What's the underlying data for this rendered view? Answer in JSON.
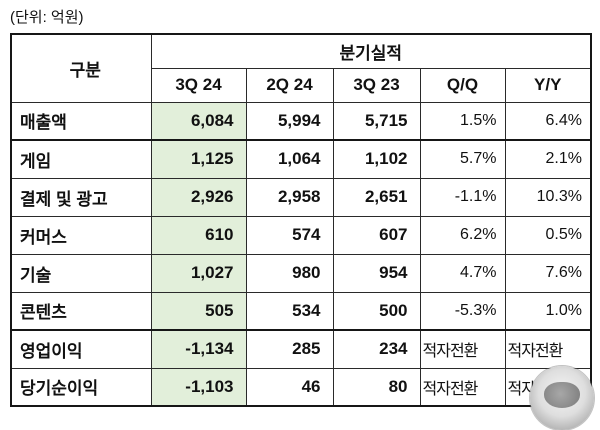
{
  "unit_label": "(단위: 억원)",
  "chart_data": {
    "type": "table",
    "unit": "(단위: 억원)",
    "group_header": "분기실적",
    "corner_header": "구분",
    "columns": [
      "3Q 24",
      "2Q 24",
      "3Q 23",
      "Q/Q",
      "Y/Y"
    ],
    "rows": [
      {
        "label": "매출액",
        "values": [
          "6,084",
          "5,994",
          "5,715",
          "1.5%",
          "6.4%"
        ]
      },
      {
        "label": "게임",
        "values": [
          "1,125",
          "1,064",
          "1,102",
          "5.7%",
          "2.1%"
        ]
      },
      {
        "label": "결제 및 광고",
        "values": [
          "2,926",
          "2,958",
          "2,651",
          "-1.1%",
          "10.3%"
        ]
      },
      {
        "label": "커머스",
        "values": [
          "610",
          "574",
          "607",
          "6.2%",
          "0.5%"
        ]
      },
      {
        "label": "기술",
        "values": [
          "1,027",
          "980",
          "954",
          "4.7%",
          "7.6%"
        ]
      },
      {
        "label": "콘텐츠",
        "values": [
          "505",
          "534",
          "500",
          "-5.3%",
          "1.0%"
        ]
      },
      {
        "label": "영업이익",
        "values": [
          "-1,134",
          "285",
          "234",
          "적자전환",
          "적자전환"
        ]
      },
      {
        "label": "당기순이익",
        "values": [
          "-1,103",
          "46",
          "80",
          "적자전환",
          "적자전환"
        ]
      }
    ],
    "highlight_column": "3Q 24",
    "highlight_color": "#e2efda",
    "layout_hints": {
      "grid": true,
      "highlight_first_value_column": true
    }
  }
}
